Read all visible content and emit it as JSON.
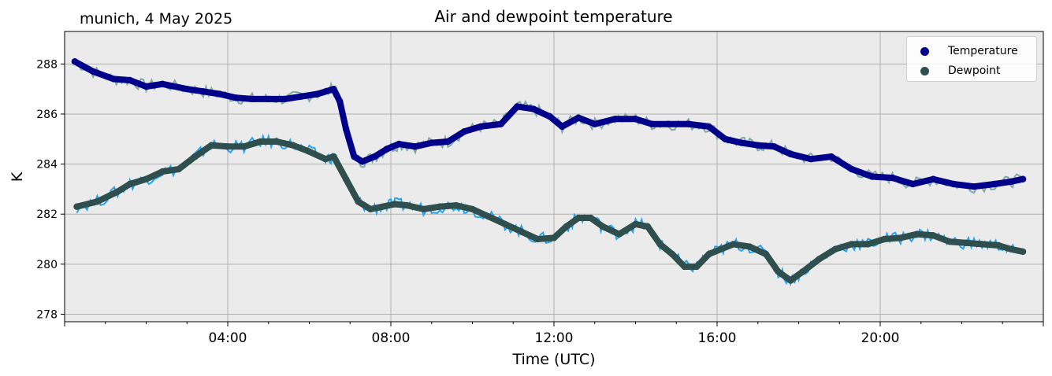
{
  "header": {
    "location_date": "munich, 4 May 2025"
  },
  "colors": {
    "temperature": "#00008b",
    "temperature_raw": "#7fa9a9",
    "dewpoint": "#2f4f4f",
    "dewpoint_raw": "#27a3ee",
    "plot_bg": "#ebebeb",
    "grid": "#b0b0b0"
  },
  "chart_data": {
    "type": "line",
    "title": "Air and dewpoint temperature",
    "xlabel": "Time (UTC)",
    "ylabel": "K",
    "xlim_hours": [
      0,
      24
    ],
    "ylim": [
      277.7,
      289.3
    ],
    "x_ticks": [
      "04:00",
      "08:00",
      "12:00",
      "16:00",
      "20:00"
    ],
    "x_tick_hours": [
      4,
      8,
      12,
      16,
      20
    ],
    "y_ticks": [
      278,
      280,
      282,
      284,
      286,
      288
    ],
    "grid": true,
    "legend": {
      "placement": "top-right",
      "entries": [
        "Temperature",
        "Dewpoint"
      ]
    },
    "series": [
      {
        "name": "Temperature",
        "style": "thick-markers",
        "x": [
          0.25,
          0.7,
          1.2,
          1.6,
          2.0,
          2.4,
          3.0,
          3.4,
          3.8,
          4.2,
          4.6,
          5.0,
          5.4,
          5.8,
          6.2,
          6.6,
          6.75,
          6.9,
          7.1,
          7.3,
          7.6,
          7.9,
          8.2,
          8.6,
          9.0,
          9.4,
          9.8,
          10.2,
          10.7,
          11.1,
          11.5,
          11.9,
          12.2,
          12.6,
          13.0,
          13.5,
          14.0,
          14.4,
          14.8,
          15.3,
          15.8,
          16.2,
          16.6,
          17.0,
          17.4,
          17.8,
          18.3,
          18.8,
          19.3,
          19.8,
          20.3,
          20.8,
          21.3,
          21.8,
          22.3,
          22.8,
          23.2,
          23.5
        ],
        "y": [
          288.1,
          287.7,
          287.4,
          287.35,
          287.1,
          287.2,
          287.0,
          286.9,
          286.8,
          286.65,
          286.6,
          286.6,
          286.6,
          286.7,
          286.8,
          287.0,
          286.5,
          285.4,
          284.3,
          284.1,
          284.3,
          284.6,
          284.8,
          284.7,
          284.85,
          284.9,
          285.3,
          285.5,
          285.6,
          286.3,
          286.2,
          285.9,
          285.5,
          285.85,
          285.6,
          285.8,
          285.8,
          285.6,
          285.6,
          285.6,
          285.5,
          285.0,
          284.85,
          284.75,
          284.7,
          284.4,
          284.2,
          284.3,
          283.8,
          283.5,
          283.45,
          283.2,
          283.4,
          283.2,
          283.1,
          283.2,
          283.3,
          283.4
        ]
      },
      {
        "name": "Dewpoint",
        "style": "thick-markers",
        "x": [
          0.3,
          0.8,
          1.3,
          1.6,
          2.0,
          2.4,
          2.8,
          3.2,
          3.6,
          4.0,
          4.4,
          4.8,
          5.2,
          5.6,
          6.0,
          6.4,
          6.6,
          6.9,
          7.2,
          7.5,
          7.8,
          8.1,
          8.4,
          8.8,
          9.2,
          9.6,
          10.0,
          10.4,
          10.8,
          11.2,
          11.6,
          12.0,
          12.3,
          12.6,
          12.9,
          13.2,
          13.6,
          14.0,
          14.3,
          14.6,
          14.9,
          15.2,
          15.5,
          15.8,
          16.1,
          16.4,
          16.8,
          17.2,
          17.5,
          17.8,
          18.1,
          18.5,
          18.9,
          19.3,
          19.7,
          20.1,
          20.5,
          20.9,
          21.3,
          21.7,
          22.1,
          22.5,
          22.9,
          23.2,
          23.5
        ],
        "y": [
          282.3,
          282.5,
          282.9,
          283.2,
          283.4,
          283.7,
          283.8,
          284.3,
          284.75,
          284.7,
          284.7,
          284.9,
          284.9,
          284.75,
          284.5,
          284.2,
          284.3,
          283.4,
          282.5,
          282.2,
          282.3,
          282.4,
          282.35,
          282.2,
          282.3,
          282.35,
          282.2,
          281.9,
          281.6,
          281.3,
          281.0,
          281.05,
          281.5,
          281.85,
          281.85,
          281.5,
          281.2,
          281.6,
          281.5,
          280.8,
          280.4,
          279.9,
          279.9,
          280.4,
          280.6,
          280.8,
          280.7,
          280.4,
          279.7,
          279.35,
          279.7,
          280.2,
          280.6,
          280.8,
          280.8,
          281.0,
          281.05,
          281.2,
          281.15,
          280.9,
          280.85,
          280.8,
          280.75,
          280.6,
          280.5
        ]
      }
    ]
  }
}
